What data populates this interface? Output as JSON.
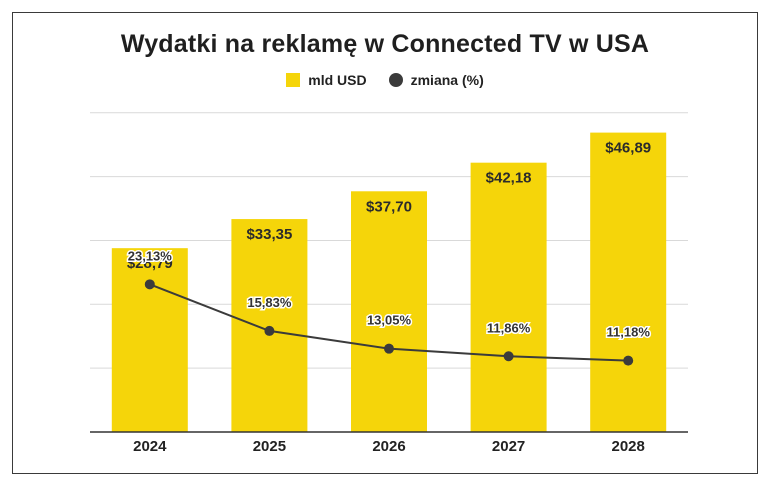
{
  "chart_data": {
    "type": "bar",
    "title": "Wydatki na reklamę w Connected TV w USA",
    "categories": [
      "2024",
      "2025",
      "2026",
      "2027",
      "2028"
    ],
    "series": [
      {
        "name": "mld USD",
        "type": "bar",
        "values": [
          28.79,
          33.35,
          37.7,
          42.18,
          46.89
        ],
        "labels": [
          "$28,79",
          "$33,35",
          "$37,70",
          "$42,18",
          "$46,89"
        ],
        "color": "#F5D50A"
      },
      {
        "name": "zmiana (%)",
        "type": "line",
        "values": [
          23.13,
          15.83,
          13.05,
          11.86,
          11.18
        ],
        "labels": [
          "23,13%",
          "15,83%",
          "13,05%",
          "11,86%",
          "11,18%"
        ],
        "color": "#3b3b3b"
      }
    ],
    "ylim": [
      0,
      50
    ],
    "y2lim": [
      0,
      50
    ],
    "grid": true,
    "legend": "top-center"
  }
}
